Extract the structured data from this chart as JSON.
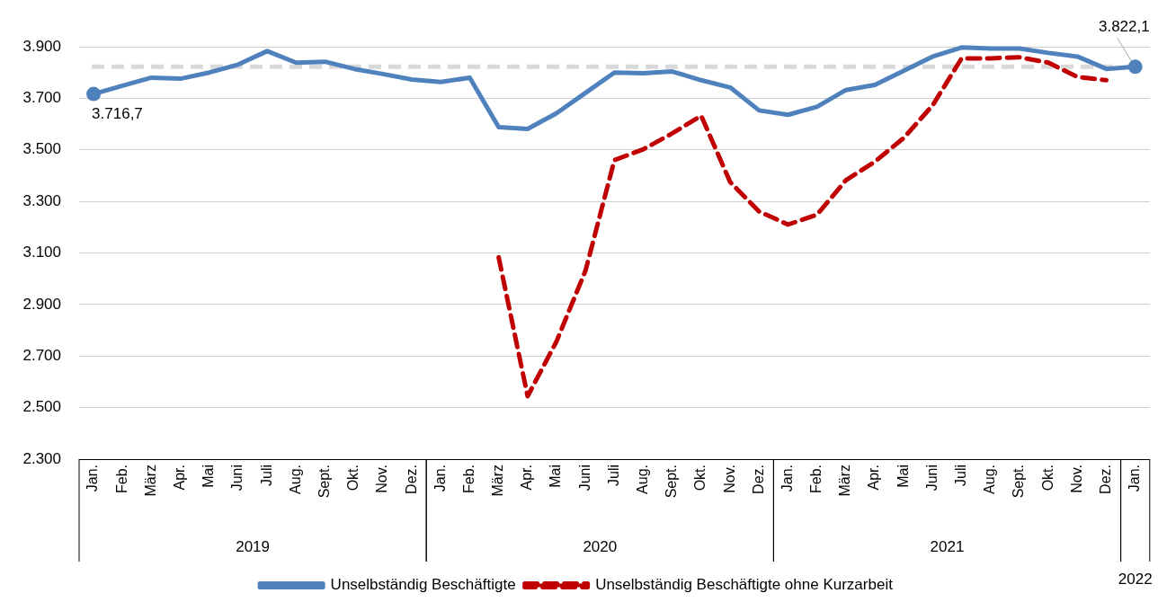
{
  "chart_data": {
    "type": "line",
    "categories": [
      "Jan.",
      "Feb.",
      "März",
      "Apr.",
      "Mai",
      "Juni",
      "Juli",
      "Aug.",
      "Sept.",
      "Okt.",
      "Nov.",
      "Dez.",
      "Jan.",
      "Feb.",
      "März",
      "Apr.",
      "Mai",
      "Juni",
      "Juli",
      "Aug.",
      "Sept.",
      "Okt.",
      "Nov.",
      "Dez.",
      "Jan.",
      "Feb.",
      "März",
      "Apr.",
      "Mai",
      "Juni",
      "Juli",
      "Aug.",
      "Sept.",
      "Okt.",
      "Nov.",
      "Dez.",
      "Jan."
    ],
    "series": [
      {
        "name": "Unselbständig Beschäftigte",
        "color": "#4f81bd",
        "line_style": "solid",
        "values": [
          3716.7,
          3749,
          3780,
          3776,
          3800,
          3831,
          3883,
          3838,
          3842,
          3814,
          3794,
          3773,
          3763,
          3780,
          3588,
          3581,
          3642,
          3721,
          3800,
          3797,
          3804,
          3770,
          3742,
          3653,
          3636,
          3667,
          3732,
          3752,
          3807,
          3862,
          3897,
          3893,
          3893,
          3876,
          3862,
          3814,
          3822.1
        ],
        "value_labels": [
          "3.716,7",
          null,
          null,
          null,
          null,
          null,
          null,
          null,
          null,
          null,
          null,
          null,
          null,
          null,
          null,
          null,
          null,
          null,
          null,
          null,
          null,
          null,
          null,
          null,
          null,
          null,
          null,
          null,
          null,
          null,
          null,
          null,
          null,
          null,
          null,
          null,
          "3.822,1"
        ]
      },
      {
        "name": "Unselbständig Beschäftigte ohne Kurzarbeit",
        "color": "#c00000",
        "line_style": "dashed",
        "values": [
          null,
          null,
          null,
          null,
          null,
          null,
          null,
          null,
          null,
          null,
          null,
          null,
          null,
          null,
          3083,
          2544,
          2757,
          3031,
          3460,
          3502,
          3564,
          3632,
          3375,
          3261,
          3210,
          3248,
          3382,
          3454,
          3546,
          3673,
          3855,
          3855,
          3859,
          3838,
          3783,
          3770,
          null
        ]
      }
    ],
    "ylim": [
      2300,
      3900
    ],
    "yticks": [
      {
        "value": 2300,
        "label": "2.300"
      },
      {
        "value": 2500,
        "label": "2.500"
      },
      {
        "value": 2700,
        "label": "2.700"
      },
      {
        "value": 2900,
        "label": "2.900"
      },
      {
        "value": 3100,
        "label": "3.100"
      },
      {
        "value": 3300,
        "label": "3.300"
      },
      {
        "value": 3500,
        "label": "3.500"
      },
      {
        "value": 3700,
        "label": "3.700"
      },
      {
        "value": 3900,
        "label": "3.900"
      }
    ],
    "grid": "y",
    "legend": "bottom",
    "ref_lines": [
      {
        "axis": "y",
        "value": 3822.1,
        "color": "#d9d9d9",
        "line_style": "dashed"
      }
    ],
    "annotations": [
      "2019",
      "2020",
      "2021",
      "2022"
    ]
  }
}
